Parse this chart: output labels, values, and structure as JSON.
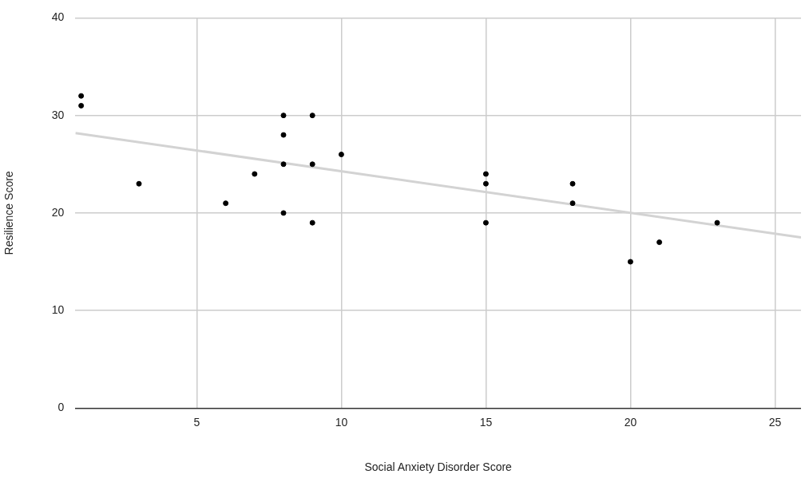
{
  "chart_data": {
    "type": "scatter",
    "xlabel": "Social Anxiety Disorder Score",
    "ylabel": "Resilience Score",
    "xlim": [
      0.8,
      25.9
    ],
    "xticks": [
      5,
      10,
      15,
      20,
      25
    ],
    "ylim": [
      0,
      40
    ],
    "yticks": [
      0,
      10,
      20,
      30,
      40
    ],
    "grid": true,
    "legend": false,
    "marker": "circle",
    "series": [
      {
        "color": "#000000",
        "x": [
          1,
          1,
          3,
          6,
          7,
          8,
          8,
          8,
          8,
          9,
          9,
          9,
          10,
          15,
          15,
          15,
          18,
          18,
          20,
          21,
          23
        ],
        "values": [
          32,
          31,
          23,
          21,
          24,
          30,
          28,
          25,
          20,
          30,
          25,
          19,
          26,
          24,
          23,
          19,
          23,
          21,
          15,
          17,
          19
        ]
      },
      {
        "type": "line",
        "marker": "none",
        "color": "#d3d3d3",
        "x": [
          0.8,
          25.9
        ],
        "values": [
          28.2,
          17.5
        ]
      }
    ]
  }
}
